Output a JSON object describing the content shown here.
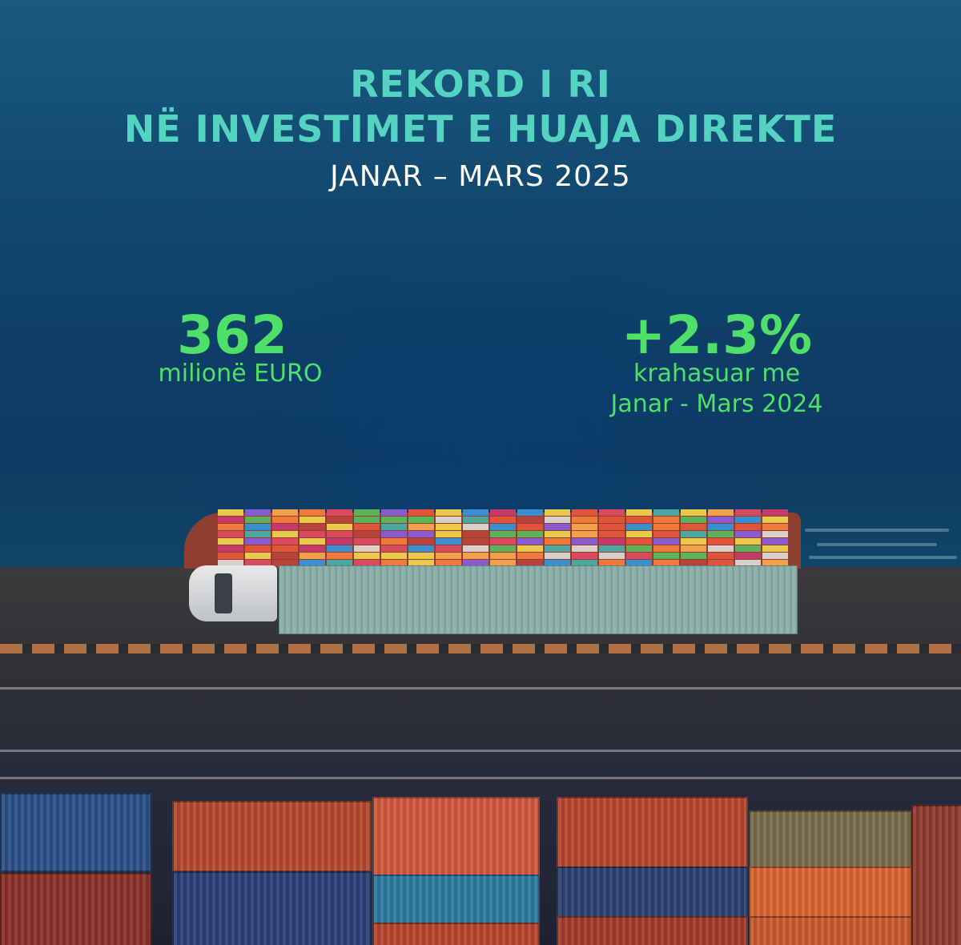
{
  "title": {
    "line1": "REKORD I RI",
    "line2": "NË INVESTIMET E HUAJA DIREKTE"
  },
  "subtitle": "JANAR – MARS 2025",
  "stats": [
    {
      "value": "362",
      "label": "milionë EURO"
    },
    {
      "value": "+2.3%",
      "label_line1": "krahasuar me",
      "label_line2": "Janar - Mars 2024"
    }
  ],
  "colors": {
    "title": "#53d3c0",
    "subtitle": "#ffffff",
    "stats": "#4fe06a",
    "sea": "#0f4069",
    "quay": "#2f3037"
  },
  "illustration": {
    "scene": "aerial-port",
    "elements": [
      "container-ship",
      "truck-with-trailer",
      "road",
      "stacked-containers"
    ]
  }
}
